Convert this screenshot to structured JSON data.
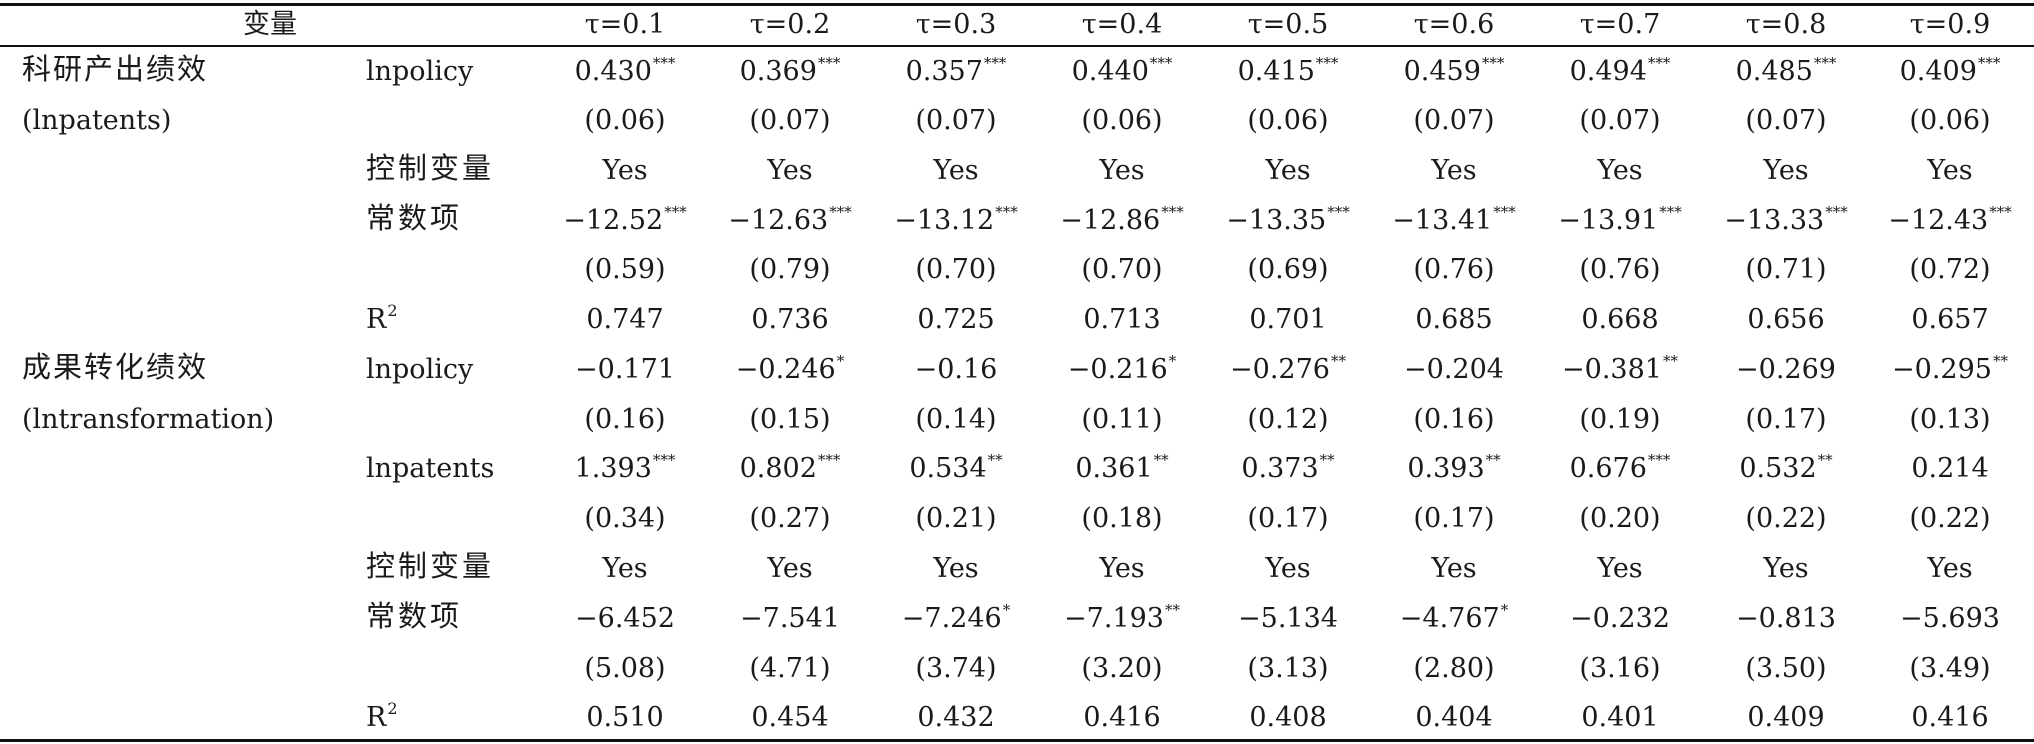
{
  "table": {
    "header_variable": "变量",
    "columns": [
      "τ=0.1",
      "τ=0.2",
      "τ=0.3",
      "τ=0.4",
      "τ=0.5",
      "τ=0.6",
      "τ=0.7",
      "τ=0.8",
      "τ=0.9"
    ],
    "panels": [
      {
        "name": "科研产出绩效",
        "sub": "(lnpatents)",
        "rows": [
          {
            "label": "lnpolicy",
            "vals": [
              "0.430",
              "0.369",
              "0.357",
              "0.440",
              "0.415",
              "0.459",
              "0.494",
              "0.485",
              "0.409"
            ],
            "stars": [
              "***",
              "***",
              "***",
              "***",
              "***",
              "***",
              "***",
              "***",
              "***"
            ]
          },
          {
            "label": "",
            "vals": [
              "(0.06)",
              "(0.07)",
              "(0.07)",
              "(0.06)",
              "(0.06)",
              "(0.07)",
              "(0.07)",
              "(0.07)",
              "(0.06)"
            ],
            "stars": [
              "",
              "",
              "",
              "",
              "",
              "",
              "",
              "",
              ""
            ]
          },
          {
            "label": "控制变量",
            "vals": [
              "Yes",
              "Yes",
              "Yes",
              "Yes",
              "Yes",
              "Yes",
              "Yes",
              "Yes",
              "Yes"
            ],
            "stars": [
              "",
              "",
              "",
              "",
              "",
              "",
              "",
              "",
              ""
            ]
          },
          {
            "label": "常数项",
            "vals": [
              "−12.52",
              "−12.63",
              "−13.12",
              "−12.86",
              "−13.35",
              "−13.41",
              "−13.91",
              "−13.33",
              "−12.43"
            ],
            "stars": [
              "***",
              "***",
              "***",
              "***",
              "***",
              "***",
              "***",
              "***",
              "***"
            ]
          },
          {
            "label": "",
            "vals": [
              "(0.59)",
              "(0.79)",
              "(0.70)",
              "(0.70)",
              "(0.69)",
              "(0.76)",
              "(0.76)",
              "(0.71)",
              "(0.72)"
            ],
            "stars": [
              "",
              "",
              "",
              "",
              "",
              "",
              "",
              "",
              ""
            ]
          },
          {
            "label": "R",
            "label_sup": "2",
            "vals": [
              "0.747",
              "0.736",
              "0.725",
              "0.713",
              "0.701",
              "0.685",
              "0.668",
              "0.656",
              "0.657"
            ],
            "stars": [
              "",
              "",
              "",
              "",
              "",
              "",
              "",
              "",
              ""
            ]
          }
        ]
      },
      {
        "name": "成果转化绩效",
        "sub": "(lntransformation)",
        "rows": [
          {
            "label": "lnpolicy",
            "vals": [
              "−0.171",
              "−0.246",
              "−0.16",
              "−0.216",
              "−0.276",
              "−0.204",
              "−0.381",
              "−0.269",
              "−0.295"
            ],
            "stars": [
              "",
              "*",
              "",
              "*",
              "**",
              "",
              "**",
              "",
              "**"
            ]
          },
          {
            "label": "",
            "vals": [
              "(0.16)",
              "(0.15)",
              "(0.14)",
              "(0.11)",
              "(0.12)",
              "(0.16)",
              "(0.19)",
              "(0.17)",
              "(0.13)"
            ],
            "stars": [
              "",
              "",
              "",
              "",
              "",
              "",
              "",
              "",
              ""
            ]
          },
          {
            "label": "lnpatents",
            "vals": [
              "1.393",
              "0.802",
              "0.534",
              "0.361",
              "0.373",
              "0.393",
              "0.676",
              "0.532",
              "0.214"
            ],
            "stars": [
              "***",
              "***",
              "**",
              "**",
              "**",
              "**",
              "***",
              "**",
              ""
            ]
          },
          {
            "label": "",
            "vals": [
              "(0.34)",
              "(0.27)",
              "(0.21)",
              "(0.18)",
              "(0.17)",
              "(0.17)",
              "(0.20)",
              "(0.22)",
              "(0.22)"
            ],
            "stars": [
              "",
              "",
              "",
              "",
              "",
              "",
              "",
              "",
              ""
            ]
          },
          {
            "label": "控制变量",
            "vals": [
              "Yes",
              "Yes",
              "Yes",
              "Yes",
              "Yes",
              "Yes",
              "Yes",
              "Yes",
              "Yes"
            ],
            "stars": [
              "",
              "",
              "",
              "",
              "",
              "",
              "",
              "",
              ""
            ]
          },
          {
            "label": "常数项",
            "vals": [
              "−6.452",
              "−7.541",
              "−7.246",
              "−7.193",
              "−5.134",
              "−4.767",
              "−0.232",
              "−0.813",
              "−5.693"
            ],
            "stars": [
              "",
              "",
              "*",
              "**",
              "",
              "*",
              "",
              "",
              ""
            ]
          },
          {
            "label": "",
            "vals": [
              "(5.08)",
              "(4.71)",
              "(3.74)",
              "(3.20)",
              "(3.13)",
              "(2.80)",
              "(3.16)",
              "(3.50)",
              "(3.49)"
            ],
            "stars": [
              "",
              "",
              "",
              "",
              "",
              "",
              "",
              "",
              ""
            ]
          },
          {
            "label": "R",
            "label_sup": "2",
            "vals": [
              "0.510",
              "0.454",
              "0.432",
              "0.416",
              "0.408",
              "0.404",
              "0.401",
              "0.409",
              "0.416"
            ],
            "stars": [
              "",
              "",
              "",
              "",
              "",
              "",
              "",
              "",
              ""
            ]
          }
        ]
      }
    ]
  }
}
